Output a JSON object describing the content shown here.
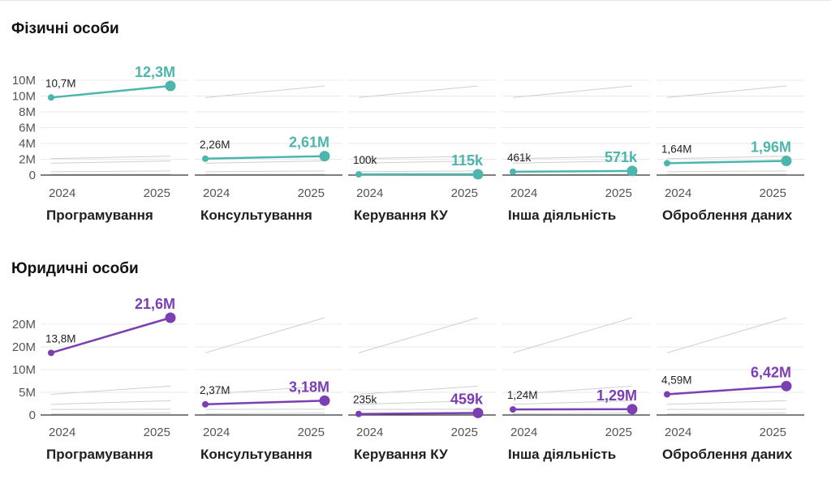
{
  "colors": {
    "individuals": "#4db6ac",
    "legal": "#7b3fb3",
    "ghost": "#cfcfcf",
    "grid": "#e9e9e9",
    "axis": "#333333"
  },
  "sections": [
    {
      "title": "Фізичні особи"
    },
    {
      "title": "Юридичні особи"
    }
  ],
  "chart_data": [
    {
      "type": "line",
      "title": "Фізичні особи",
      "x": [
        "2024",
        "2025"
      ],
      "y_ticks": [
        "0",
        "2M",
        "4M",
        "6M",
        "8M",
        "10M",
        "10M"
      ],
      "panels": [
        "Програмування",
        "Консультування",
        "Керування КУ",
        "Інша діяльність",
        "Оброблення даних"
      ],
      "series": [
        {
          "name": "Програмування",
          "values": [
            10700000,
            12300000
          ],
          "labels": [
            "10,7M",
            "12,3M"
          ]
        },
        {
          "name": "Консультування",
          "values": [
            2260000,
            2610000
          ],
          "labels": [
            "2,26M",
            "2,61M"
          ]
        },
        {
          "name": "Керування КУ",
          "values": [
            100000,
            115000
          ],
          "labels": [
            "100k",
            "115k"
          ]
        },
        {
          "name": "Інша діяльність",
          "values": [
            461000,
            571000
          ],
          "labels": [
            "461k",
            "571k"
          ]
        },
        {
          "name": "Оброблення даних",
          "values": [
            1640000,
            1960000
          ],
          "labels": [
            "1,64M",
            "1,96M"
          ]
        }
      ]
    },
    {
      "type": "line",
      "title": "Юридичні особи",
      "x": [
        "2024",
        "2025"
      ],
      "y_ticks": [
        "0",
        "5M",
        "10M",
        "20M",
        "20M"
      ],
      "panels": [
        "Програмування",
        "Консультування",
        "Керування КУ",
        "Інша діяльність",
        "Оброблення даних"
      ],
      "series": [
        {
          "name": "Програмування",
          "values": [
            13800000,
            21600000
          ],
          "labels": [
            "13,8M",
            "21,6M"
          ]
        },
        {
          "name": "Консультування",
          "values": [
            2370000,
            3180000
          ],
          "labels": [
            "2,37M",
            "3,18M"
          ]
        },
        {
          "name": "Керування КУ",
          "values": [
            235000,
            459000
          ],
          "labels": [
            "235k",
            "459k"
          ]
        },
        {
          "name": "Інша діяльність",
          "values": [
            1240000,
            1290000
          ],
          "labels": [
            "1,24M",
            "1,29M"
          ]
        },
        {
          "name": "Оброблення даних",
          "values": [
            4590000,
            6420000
          ],
          "labels": [
            "4,59M",
            "6,42M"
          ]
        }
      ]
    }
  ]
}
